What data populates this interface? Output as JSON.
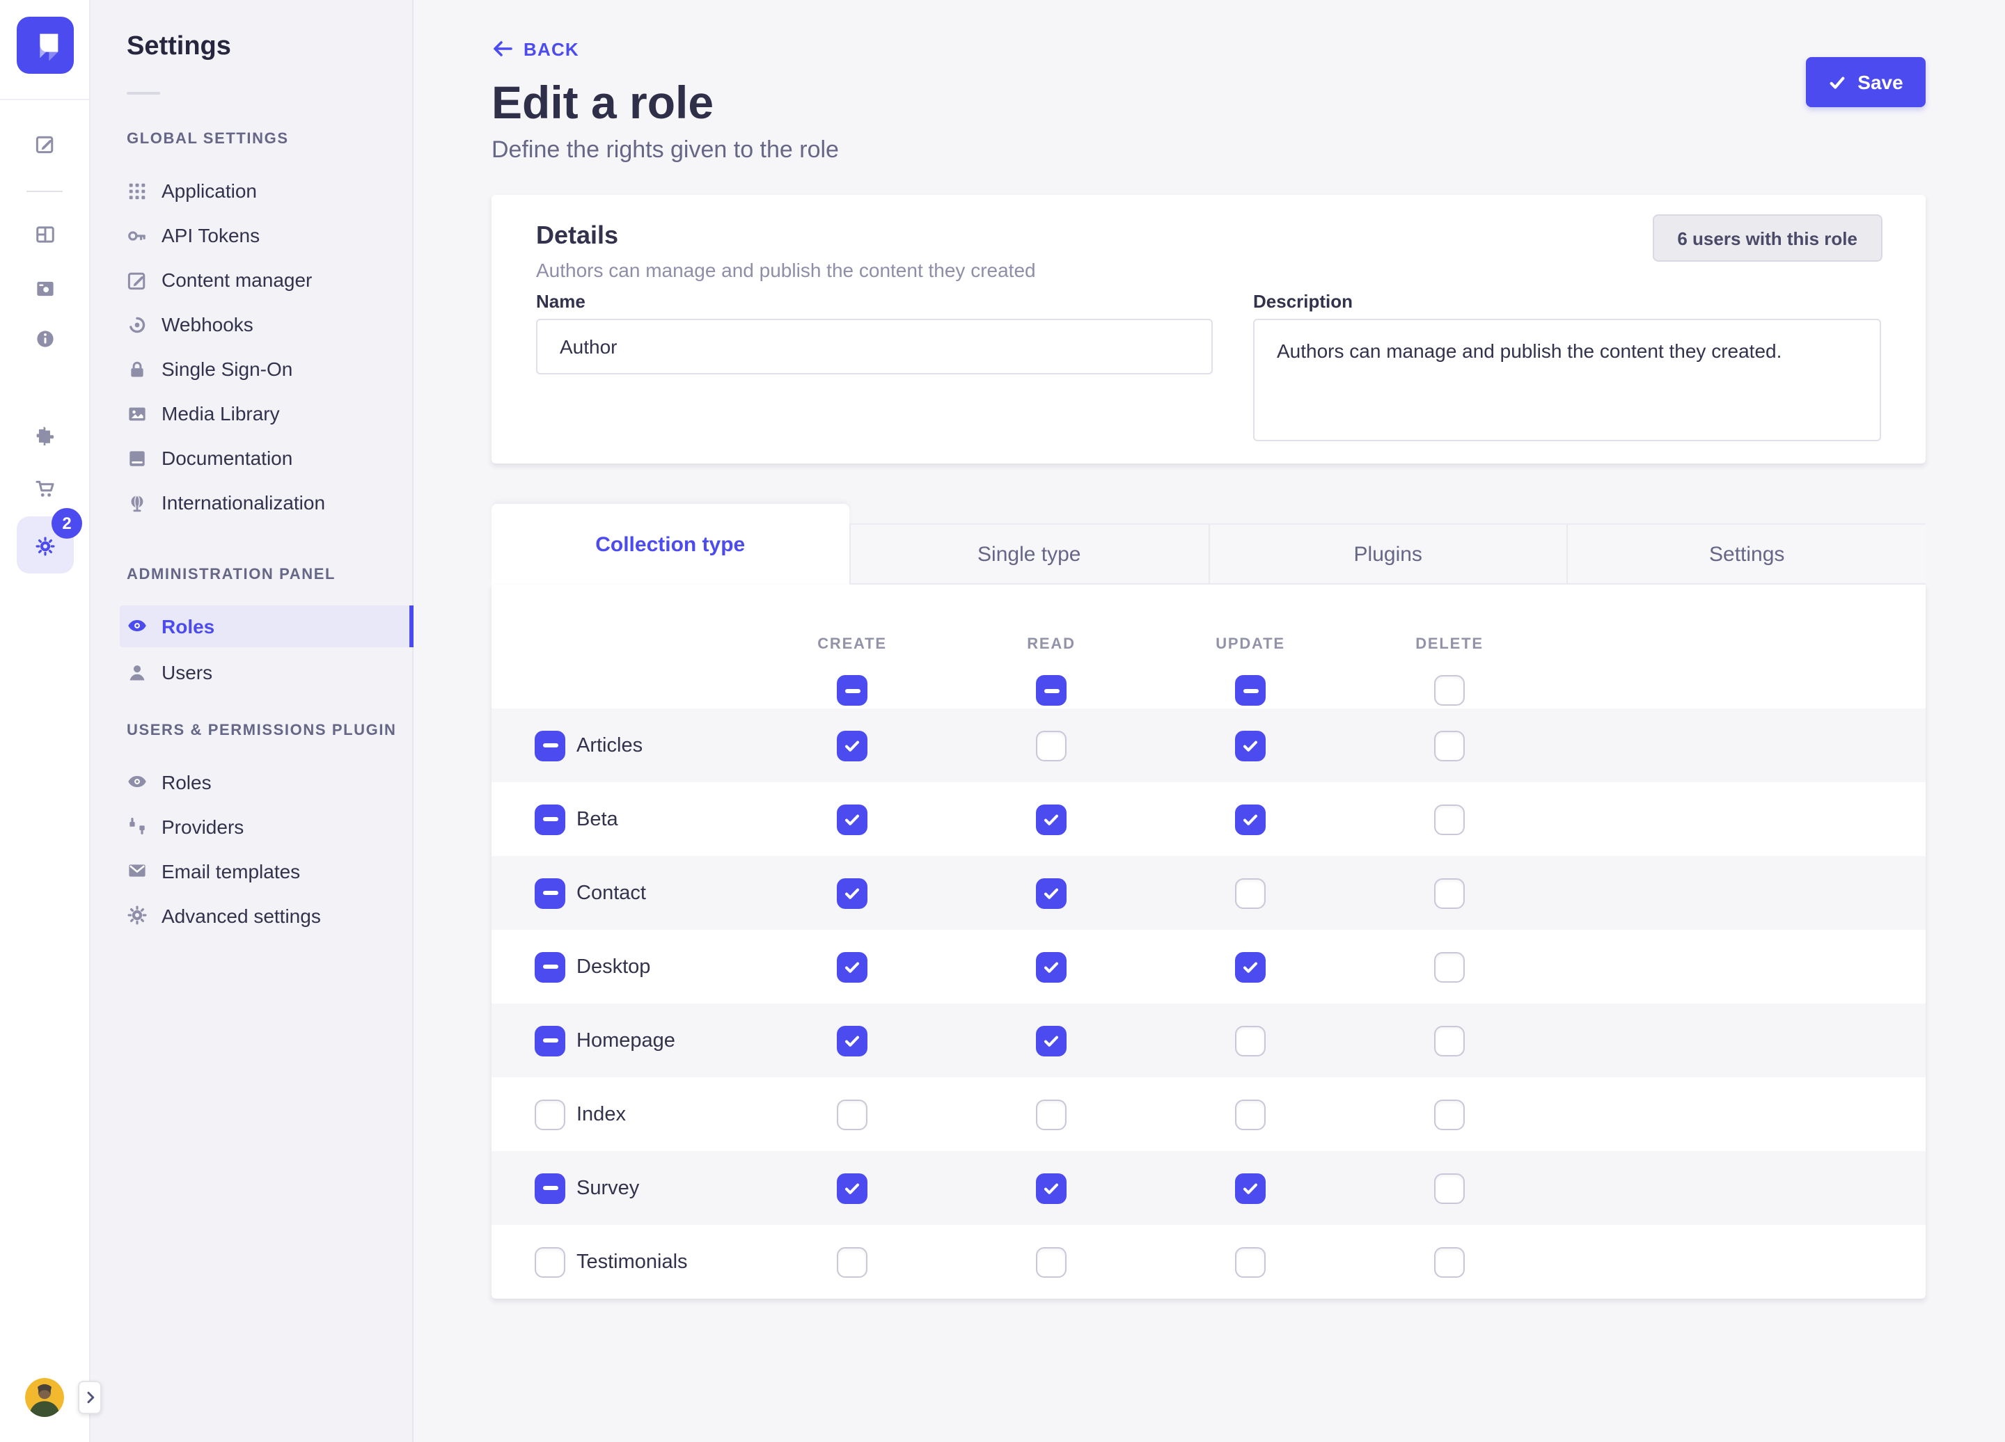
{
  "colors": {
    "primary": "#4b4bf0",
    "text": "#32324d",
    "muted": "#666687",
    "sidebar_bg": "#f2f2f7",
    "main_bg": "#f6f6f9"
  },
  "rail": {
    "logo_icon": "strapi-logo",
    "icons": [
      {
        "name": "feather-edit-icon"
      },
      {
        "name": "layout-builder-icon"
      },
      {
        "name": "media-image-icon"
      },
      {
        "name": "info-icon"
      },
      {
        "name": "puzzle-plugins-icon"
      },
      {
        "name": "cart-marketplace-icon"
      },
      {
        "name": "gear-settings-icon",
        "active": true,
        "badge": "2"
      }
    ],
    "badge_count": "2",
    "avatar_icon": "user-avatar",
    "expand_icon": "chevron-right-icon"
  },
  "sidebar": {
    "title": "Settings",
    "sections": [
      {
        "header": "GLOBAL SETTINGS",
        "items": [
          {
            "label": "Application",
            "icon": "grid-icon"
          },
          {
            "label": "API Tokens",
            "icon": "key-icon"
          },
          {
            "label": "Content manager",
            "icon": "pencil-square-icon"
          },
          {
            "label": "Webhooks",
            "icon": "webhook-icon"
          },
          {
            "label": "Single Sign-On",
            "icon": "lock-icon"
          },
          {
            "label": "Media Library",
            "icon": "image-icon"
          },
          {
            "label": "Documentation",
            "icon": "book-icon"
          },
          {
            "label": "Internationalization",
            "icon": "globe-icon"
          }
        ]
      },
      {
        "header": "ADMINISTRATION PANEL",
        "items": [
          {
            "label": "Roles",
            "icon": "eye-icon",
            "active": true
          },
          {
            "label": "Users",
            "icon": "user-icon"
          }
        ]
      },
      {
        "header": "USERS & PERMISSIONS PLUGIN",
        "items": [
          {
            "label": "Roles",
            "icon": "eye-icon"
          },
          {
            "label": "Providers",
            "icon": "plug-icon"
          },
          {
            "label": "Email templates",
            "icon": "email-icon"
          },
          {
            "label": "Advanced settings",
            "icon": "gear-icon"
          }
        ]
      }
    ]
  },
  "header": {
    "back": "BACK",
    "back_icon": "left-arrow-icon",
    "title": "Edit a role",
    "subtitle": "Define the rights given to the role",
    "save": "Save",
    "save_icon": "check-icon"
  },
  "details": {
    "title": "Details",
    "subtitle": "Authors can manage and publish the content they created",
    "users_button": "6 users with this role",
    "name_label": "Name",
    "name_value": "Author",
    "description_label": "Description",
    "description_value": "Authors can manage and publish the content they created."
  },
  "tabs": [
    {
      "label": "Collection type",
      "active": true
    },
    {
      "label": "Single type",
      "active": false
    },
    {
      "label": "Plugins",
      "active": false
    },
    {
      "label": "Settings",
      "active": false
    }
  ],
  "permissions": {
    "columns": [
      "CREATE",
      "READ",
      "UPDATE",
      "DELETE"
    ],
    "header_states": [
      "indeterminate",
      "indeterminate",
      "indeterminate",
      "unchecked"
    ],
    "rows": [
      {
        "label": "Articles",
        "row_state": "indeterminate",
        "states": [
          "checked",
          "unchecked",
          "checked",
          "unchecked"
        ]
      },
      {
        "label": "Beta",
        "row_state": "indeterminate",
        "states": [
          "checked",
          "checked",
          "checked",
          "unchecked"
        ]
      },
      {
        "label": "Contact",
        "row_state": "indeterminate",
        "states": [
          "checked",
          "checked",
          "unchecked",
          "unchecked"
        ]
      },
      {
        "label": "Desktop",
        "row_state": "indeterminate",
        "states": [
          "checked",
          "checked",
          "checked",
          "unchecked"
        ]
      },
      {
        "label": "Homepage",
        "row_state": "indeterminate",
        "states": [
          "checked",
          "checked",
          "unchecked",
          "unchecked"
        ]
      },
      {
        "label": "Index",
        "row_state": "unchecked",
        "states": [
          "unchecked",
          "unchecked",
          "unchecked",
          "unchecked"
        ]
      },
      {
        "label": "Survey",
        "row_state": "indeterminate",
        "states": [
          "checked",
          "checked",
          "checked",
          "unchecked"
        ]
      },
      {
        "label": "Testimonials",
        "row_state": "unchecked",
        "states": [
          "unchecked",
          "unchecked",
          "unchecked",
          "unchecked"
        ]
      }
    ]
  }
}
